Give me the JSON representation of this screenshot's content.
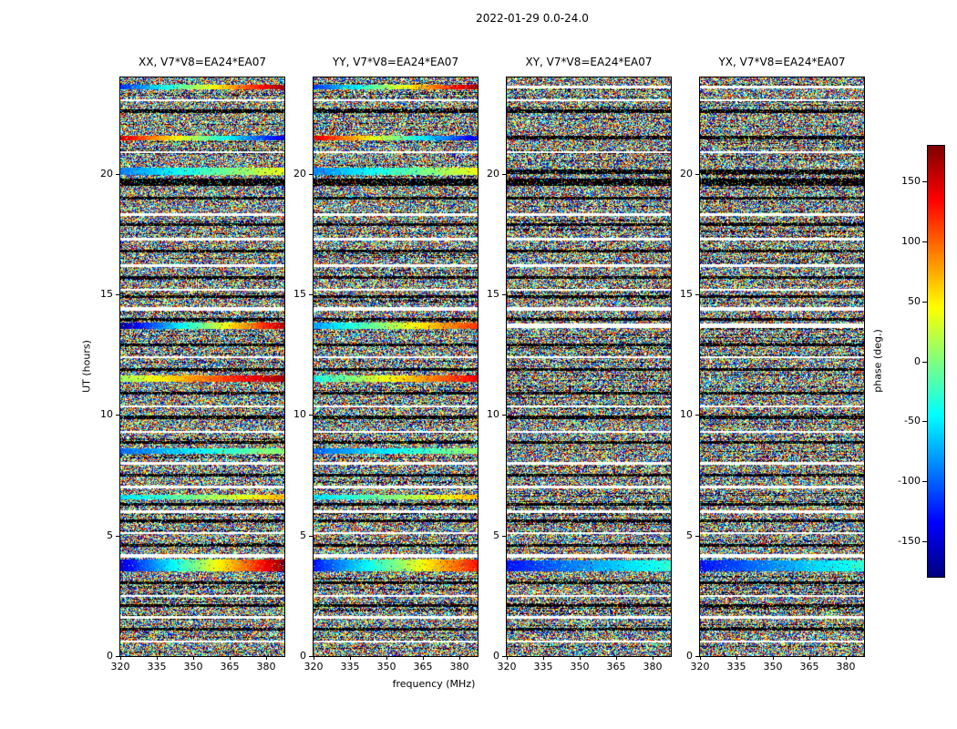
{
  "chart_data": {
    "type": "heatmap",
    "title": "2022-01-29 0.0-24.0",
    "xlabel": "frequency (MHz)",
    "ylabel": "UT (hours)",
    "x_range": [
      320,
      387.5
    ],
    "y_range": [
      0,
      24
    ],
    "x_ticks": [
      320,
      335,
      350,
      365,
      380
    ],
    "x_tick_labels": [
      "320",
      "335",
      "350",
      "365",
      "380"
    ],
    "y_ticks": [
      0,
      5,
      10,
      15,
      20
    ],
    "y_tick_labels": [
      "0",
      "5",
      "10",
      "15",
      "20"
    ],
    "grid": false,
    "panels": [
      {
        "title": "XX, V7*V8=EA24*EA07",
        "pol": "XX",
        "baseline": "V7*V8=EA24*EA07",
        "seed": 3
      },
      {
        "title": "YY, V7*V8=EA24*EA07",
        "pol": "YY",
        "baseline": "V7*V8=EA24*EA07",
        "seed": 7
      },
      {
        "title": "XY, V7*V8=EA24*EA07",
        "pol": "XY",
        "baseline": "V7*V8=EA24*EA07",
        "seed": 13
      },
      {
        "title": "YX, V7*V8=EA24*EA07",
        "pol": "YX",
        "baseline": "V7*V8=EA24*EA07",
        "seed": 29
      }
    ],
    "colorbar": {
      "label": "phase (deg.)",
      "colormap": "jet",
      "range": [
        -180,
        180
      ],
      "ticks": [
        150,
        100,
        50,
        0,
        -50,
        -100,
        -150
      ],
      "tick_labels": [
        "150",
        "100",
        "50",
        "0",
        "-50",
        "-100",
        "-150"
      ]
    },
    "content": {
      "description": "Interferometric visibility phase versus frequency (x) and UT time (y) for four polarization products of baseline EA24*EA07. Mostly uniformly-random phase noise speckle, interleaved with flagged white time rows, dark (black) low-amplitude rows, and coherent rainbow phase-gradient bands where the phase ramps smoothly across the band.",
      "noise": {
        "white_fraction": 0.1,
        "dark_row_chance": 0.1,
        "dark_pixel_chance": 0.5,
        "base_dark_chance": 0.03
      },
      "white_rows": [
        {
          "ut": 23.05,
          "h": 0.1
        },
        {
          "ut": 23.6,
          "h": 0.12,
          "panels": [
            2,
            3
          ]
        },
        {
          "ut": 20.9,
          "h": 0.1
        },
        {
          "ut": 18.3,
          "h": 0.1
        },
        {
          "ut": 17.3,
          "h": 0.1
        },
        {
          "ut": 16.2,
          "h": 0.1
        },
        {
          "ut": 15.2,
          "h": 0.1
        },
        {
          "ut": 14.4,
          "h": 0.15
        },
        {
          "ut": 13.7,
          "h": 0.22,
          "panels": [
            2,
            3
          ]
        },
        {
          "ut": 12.4,
          "h": 0.1
        },
        {
          "ut": 10.35,
          "h": 0.1
        },
        {
          "ut": 9.3,
          "h": 0.1
        },
        {
          "ut": 8.0,
          "h": 0.1
        },
        {
          "ut": 7.0,
          "h": 0.1
        },
        {
          "ut": 6.0,
          "h": 0.1
        },
        {
          "ut": 5.1,
          "h": 0.1
        },
        {
          "ut": 4.15,
          "h": 0.15
        },
        {
          "ut": 2.5,
          "h": 0.1
        },
        {
          "ut": 1.6,
          "h": 0.1
        },
        {
          "ut": 0.6,
          "h": 0.1
        }
      ],
      "black_rows": [
        {
          "ut": 22.6,
          "h": 0.14
        },
        {
          "ut": 21.5,
          "h": 0.16,
          "panels": [
            2,
            3
          ]
        },
        {
          "ut": 20.1,
          "h": 0.2,
          "panels": [
            2,
            3
          ]
        },
        {
          "ut": 19.65,
          "h": 0.3
        },
        {
          "ut": 19.0,
          "h": 0.12
        },
        {
          "ut": 17.9,
          "h": 0.12
        },
        {
          "ut": 16.8,
          "h": 0.12
        },
        {
          "ut": 15.7,
          "h": 0.12
        },
        {
          "ut": 14.9,
          "h": 0.12
        },
        {
          "ut": 13.95,
          "h": 0.12
        },
        {
          "ut": 12.9,
          "h": 0.12
        },
        {
          "ut": 11.9,
          "h": 0.12
        },
        {
          "ut": 10.9,
          "h": 0.12
        },
        {
          "ut": 9.9,
          "h": 0.12
        },
        {
          "ut": 8.85,
          "h": 0.12
        },
        {
          "ut": 7.5,
          "h": 0.12
        },
        {
          "ut": 6.3,
          "h": 0.12
        },
        {
          "ut": 5.6,
          "h": 0.12
        },
        {
          "ut": 4.6,
          "h": 0.12
        },
        {
          "ut": 3.05,
          "h": 0.12
        },
        {
          "ut": 2.1,
          "h": 0.12
        },
        {
          "ut": 1.1,
          "h": 0.12
        }
      ],
      "gradient_bands": [
        {
          "ut": 23.6,
          "h": 0.18,
          "p0": -120,
          "p1": 170,
          "panels": [
            0,
            1
          ]
        },
        {
          "ut": 21.5,
          "h": 0.2,
          "p0": 150,
          "p1": -150,
          "panels": [
            0,
            1
          ]
        },
        {
          "ut": 20.1,
          "h": 0.28,
          "p0": -90,
          "p1": 40,
          "panels": [
            0,
            1
          ]
        },
        {
          "ut": 13.7,
          "h": 0.3,
          "p0": -170,
          "p1": 160,
          "panels": [
            0
          ]
        },
        {
          "ut": 13.7,
          "h": 0.3,
          "p0": -80,
          "p1": 120,
          "panels": [
            1
          ]
        },
        {
          "ut": 11.5,
          "h": 0.25,
          "p0": 10,
          "p1": 170,
          "panels": [
            0
          ]
        },
        {
          "ut": 11.5,
          "h": 0.25,
          "p0": -40,
          "p1": 140,
          "panels": [
            1
          ]
        },
        {
          "ut": 8.5,
          "h": 0.25,
          "p0": -100,
          "p1": 10,
          "panels": [
            0,
            1
          ]
        },
        {
          "ut": 6.6,
          "h": 0.2,
          "p0": -60,
          "p1": 70,
          "panels": [
            0,
            1
          ]
        },
        {
          "ut": 3.75,
          "h": 0.5,
          "p0": -150,
          "p1": 175,
          "panels": [
            0
          ]
        },
        {
          "ut": 3.75,
          "h": 0.5,
          "p0": -130,
          "p1": 130,
          "panels": [
            1
          ]
        },
        {
          "ut": 3.75,
          "h": 0.45,
          "p0": -130,
          "p1": -30,
          "panels": [
            2,
            3
          ]
        }
      ]
    }
  }
}
